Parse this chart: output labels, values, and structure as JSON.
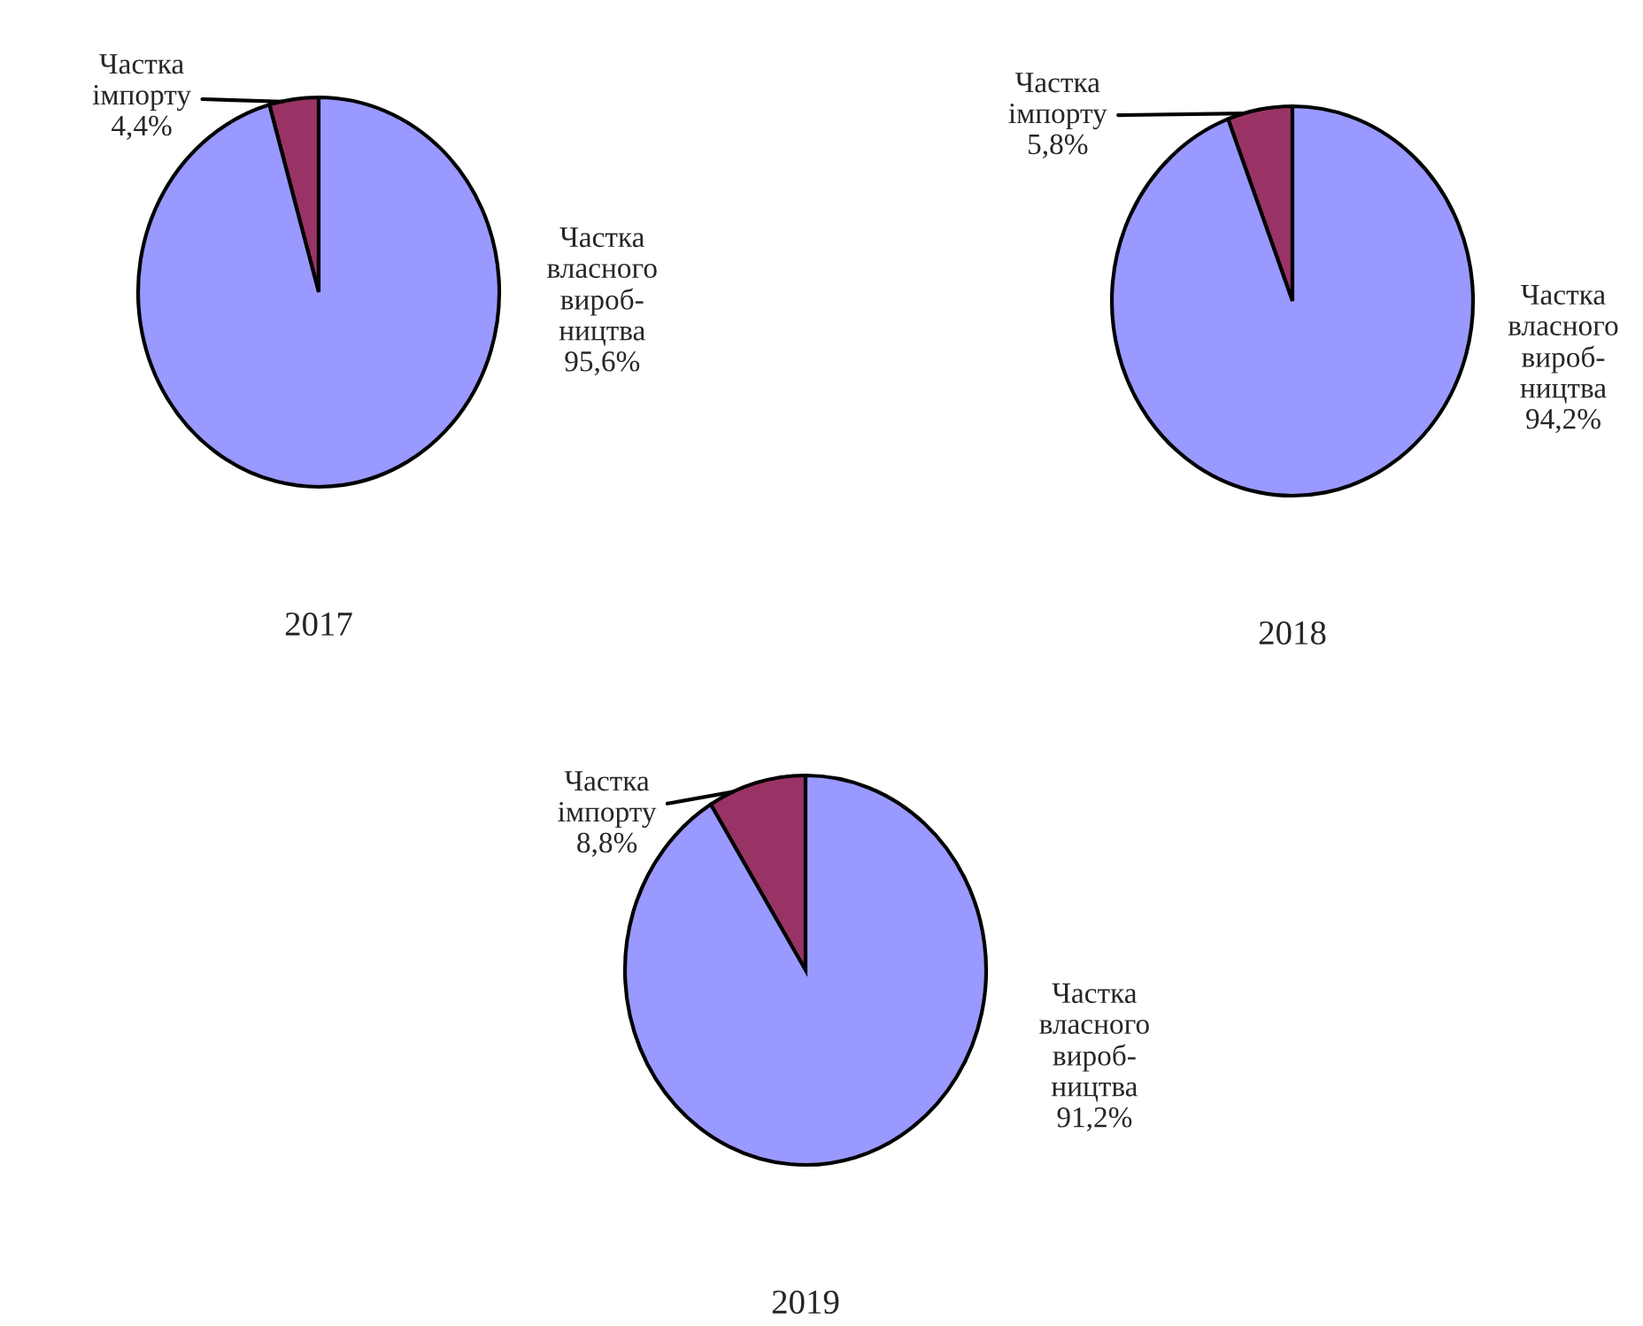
{
  "chart_data": [
    {
      "type": "pie",
      "title": "2017",
      "categories": [
        "Частка\nімпорту",
        "Частка\nвласного\nвироб-\nництва"
      ],
      "values": [
        4.4,
        95.6
      ],
      "value_labels": [
        "4,4%",
        "95,6%"
      ],
      "colors": [
        "#993366",
        "#9999ff"
      ]
    },
    {
      "type": "pie",
      "title": "2018",
      "categories": [
        "Частка\nімпорту",
        "Частка\nвласного\nвироб-\nництва"
      ],
      "values": [
        5.8,
        94.2
      ],
      "value_labels": [
        "5,8%",
        "94,2%"
      ],
      "colors": [
        "#993366",
        "#9999ff"
      ]
    },
    {
      "type": "pie",
      "title": "2019",
      "categories": [
        "Частка\nімпорту",
        "Частка\nвласного\nвироб-\nництва"
      ],
      "values": [
        8.8,
        91.2
      ],
      "value_labels": [
        "8,8%",
        "91,2%"
      ],
      "colors": [
        "#993366",
        "#9999ff"
      ]
    }
  ]
}
